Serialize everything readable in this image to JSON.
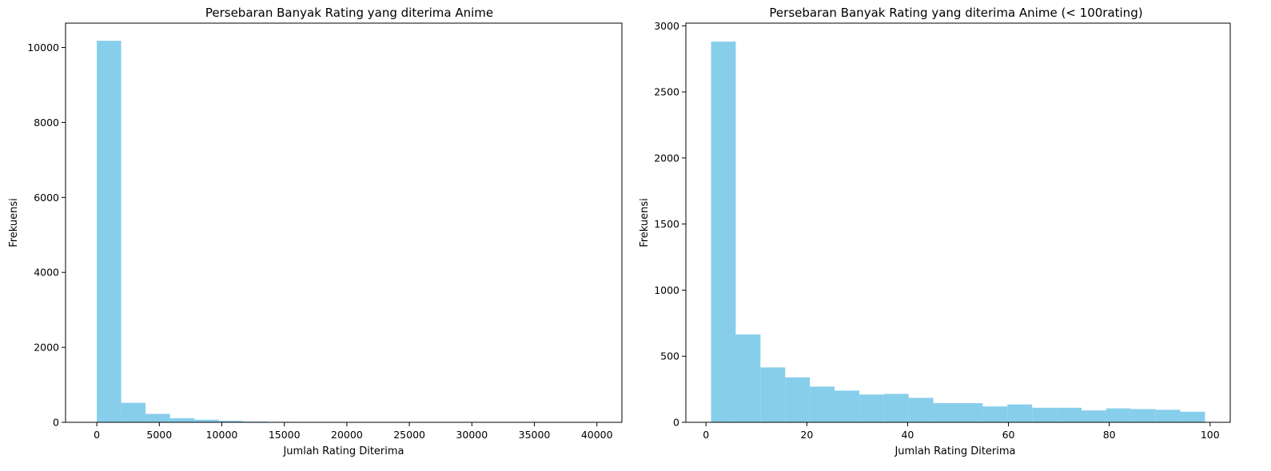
{
  "chart_data": [
    {
      "type": "bar",
      "title": "Persebaran Banyak Rating yang diterima Anime",
      "xlabel": "Jumlah Rating Diterima",
      "ylabel": "Frekuensi",
      "xlim": [
        -2500,
        42000
      ],
      "ylim": [
        0,
        10650
      ],
      "xticks": [
        0,
        5000,
        10000,
        15000,
        20000,
        25000,
        30000,
        35000,
        40000
      ],
      "yticks": [
        0,
        2000,
        4000,
        6000,
        8000,
        10000
      ],
      "color": "#87ceeb",
      "bins": [
        {
          "x0": 0,
          "x1": 1950,
          "value": 10180
        },
        {
          "x0": 1950,
          "x1": 3900,
          "value": 520
        },
        {
          "x0": 3900,
          "x1": 5850,
          "value": 225
        },
        {
          "x0": 5850,
          "x1": 7800,
          "value": 110
        },
        {
          "x0": 7800,
          "x1": 9750,
          "value": 70
        },
        {
          "x0": 9750,
          "x1": 11700,
          "value": 40
        },
        {
          "x0": 11700,
          "x1": 13650,
          "value": 20
        },
        {
          "x0": 13650,
          "x1": 15600,
          "value": 12
        },
        {
          "x0": 15600,
          "x1": 17550,
          "value": 8
        },
        {
          "x0": 17550,
          "x1": 19500,
          "value": 5
        },
        {
          "x0": 19500,
          "x1": 21450,
          "value": 2
        },
        {
          "x0": 21450,
          "x1": 23400,
          "value": 1
        },
        {
          "x0": 23400,
          "x1": 25350,
          "value": 1
        },
        {
          "x0": 25350,
          "x1": 27300,
          "value": 0
        },
        {
          "x0": 27300,
          "x1": 29250,
          "value": 0
        },
        {
          "x0": 29250,
          "x1": 31200,
          "value": 0
        },
        {
          "x0": 31200,
          "x1": 33150,
          "value": 0
        },
        {
          "x0": 33150,
          "x1": 35100,
          "value": 0
        },
        {
          "x0": 35100,
          "x1": 37050,
          "value": 0
        },
        {
          "x0": 37050,
          "x1": 39000,
          "value": 1
        }
      ]
    },
    {
      "type": "bar",
      "title": "Persebaran Banyak Rating yang diterima Anime (< 100rating)",
      "xlabel": "Jumlah Rating Diterima",
      "ylabel": "Frekuensi",
      "xlim": [
        -4,
        104
      ],
      "ylim": [
        0,
        3020
      ],
      "xticks": [
        0,
        20,
        40,
        60,
        80,
        100
      ],
      "yticks": [
        0,
        500,
        1000,
        1500,
        2000,
        2500,
        3000
      ],
      "color": "#87ceeb",
      "bins": [
        {
          "x0": 1,
          "x1": 5.9,
          "value": 2880
        },
        {
          "x0": 5.9,
          "x1": 10.8,
          "value": 665
        },
        {
          "x0": 10.8,
          "x1": 15.7,
          "value": 415
        },
        {
          "x0": 15.7,
          "x1": 20.6,
          "value": 340
        },
        {
          "x0": 20.6,
          "x1": 25.5,
          "value": 270
        },
        {
          "x0": 25.5,
          "x1": 30.4,
          "value": 240
        },
        {
          "x0": 30.4,
          "x1": 35.3,
          "value": 210
        },
        {
          "x0": 35.3,
          "x1": 40.2,
          "value": 215
        },
        {
          "x0": 40.2,
          "x1": 45.1,
          "value": 185
        },
        {
          "x0": 45.1,
          "x1": 50.0,
          "value": 145
        },
        {
          "x0": 50.0,
          "x1": 54.9,
          "value": 145
        },
        {
          "x0": 54.9,
          "x1": 59.8,
          "value": 120
        },
        {
          "x0": 59.8,
          "x1": 64.7,
          "value": 135
        },
        {
          "x0": 64.7,
          "x1": 69.6,
          "value": 110
        },
        {
          "x0": 69.6,
          "x1": 74.5,
          "value": 110
        },
        {
          "x0": 74.5,
          "x1": 79.4,
          "value": 90
        },
        {
          "x0": 79.4,
          "x1": 84.3,
          "value": 105
        },
        {
          "x0": 84.3,
          "x1": 89.2,
          "value": 100
        },
        {
          "x0": 89.2,
          "x1": 94.1,
          "value": 95
        },
        {
          "x0": 94.1,
          "x1": 99.0,
          "value": 80
        }
      ]
    }
  ]
}
